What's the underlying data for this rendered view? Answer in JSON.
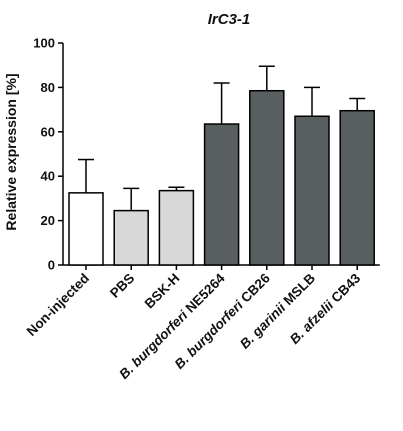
{
  "chart_data": {
    "type": "bar",
    "title": "IrC3-1",
    "ylabel": "Relative expression [%]",
    "xlabel": "",
    "ylim": [
      0,
      100
    ],
    "yticks": [
      0,
      20,
      40,
      60,
      80,
      100
    ],
    "grid": false,
    "categories": [
      {
        "italic": "",
        "plain": "Non-injected"
      },
      {
        "italic": "",
        "plain": "PBS"
      },
      {
        "italic": "",
        "plain": "BSK-H"
      },
      {
        "italic": "B. burgdorferi",
        "plain": " NE5264"
      },
      {
        "italic": "B. burgdorferi",
        "plain": " CB26"
      },
      {
        "italic": "B. garinii",
        "plain": " MSLB"
      },
      {
        "italic": "B. afzelii",
        "plain": " CB43"
      }
    ],
    "values": [
      32.5,
      24.5,
      33.5,
      63.5,
      78.5,
      67,
      69.5
    ],
    "errors": [
      15,
      10,
      1.5,
      18.5,
      11,
      13,
      5.5
    ],
    "colors": {
      "control": "#ffffff",
      "buffer": "#d8d8d8",
      "borrelia": "#595e61",
      "outline": "#000000"
    },
    "bar_colors": [
      "control",
      "buffer",
      "buffer",
      "borrelia",
      "borrelia",
      "borrelia",
      "borrelia"
    ]
  }
}
